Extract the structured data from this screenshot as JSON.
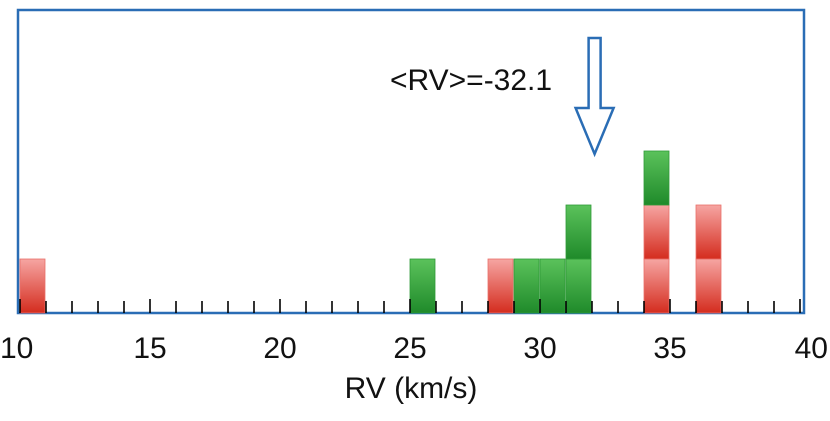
{
  "chart_data": {
    "type": "bar",
    "xlabel": "RV (km/s)",
    "xlim": [
      10,
      40
    ],
    "x_ticks": [
      10,
      15,
      20,
      25,
      30,
      35,
      40
    ],
    "minor_tick_step": 1,
    "bin_width": 1,
    "grid": false,
    "legend": "none",
    "stacks": [
      {
        "x": 10.5,
        "blocks": [
          "red"
        ]
      },
      {
        "x": 25.5,
        "blocks": [
          "green"
        ]
      },
      {
        "x": 28.5,
        "blocks": [
          "red"
        ]
      },
      {
        "x": 29.5,
        "blocks": [
          "green"
        ]
      },
      {
        "x": 30.5,
        "blocks": [
          "green"
        ]
      },
      {
        "x": 31.5,
        "blocks": [
          "green",
          "green"
        ]
      },
      {
        "x": 34.5,
        "blocks": [
          "red",
          "red",
          "green"
        ]
      },
      {
        "x": 36.5,
        "blocks": [
          "red",
          "red"
        ]
      }
    ],
    "annotation": {
      "text": "<RV>=-32.1",
      "arrow_x": 32.1
    }
  },
  "colors": {
    "frame": "#2a6db5",
    "red_top": "#f6a5a2",
    "red_bottom": "#d42c1e",
    "green_top": "#5bc25b",
    "green_bottom": "#1f8a2a",
    "arrow": "#2a6db5"
  }
}
